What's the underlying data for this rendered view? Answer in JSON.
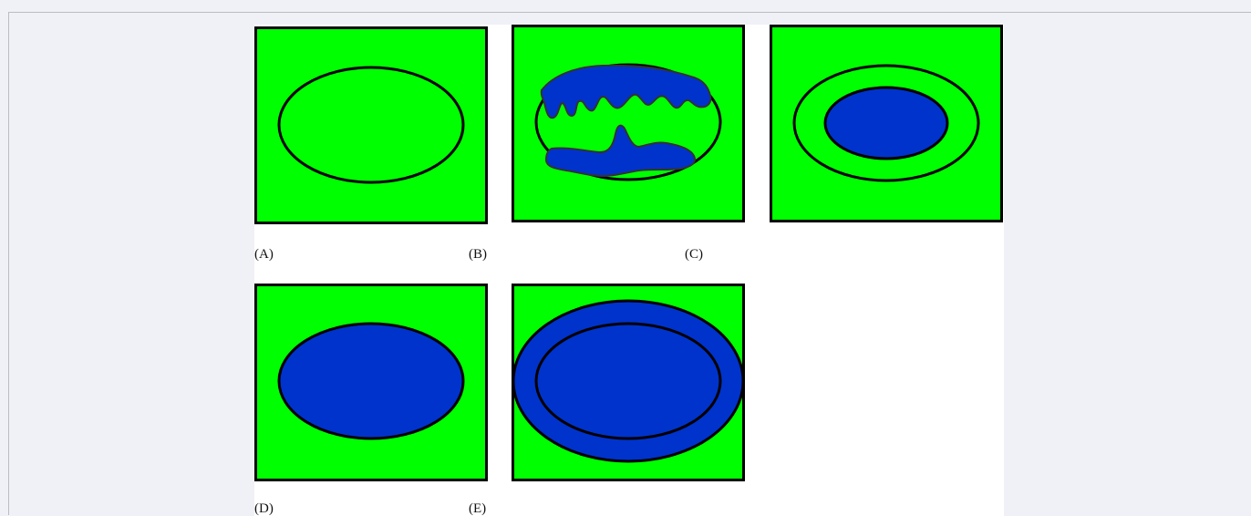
{
  "figure": {
    "panels": [
      {
        "id": "A",
        "label": "(A)",
        "description_icon": "green-square-empty-ellipse-icon"
      },
      {
        "id": "B",
        "label": "(B)",
        "description_icon": "green-square-ellipse-irregular-blue-icon"
      },
      {
        "id": "C",
        "label": "(C)",
        "description_icon": "green-square-ring-inner-blue-ellipse-icon"
      },
      {
        "id": "D",
        "label": "(D)",
        "description_icon": "green-square-filled-blue-ellipse-icon"
      },
      {
        "id": "E",
        "label": "(E)",
        "description_icon": "green-square-blue-ring-ellipse-icon"
      }
    ]
  },
  "colors": {
    "background": "#f0f1f7",
    "figure_bg": "#ffffff",
    "panel_fill": "#00ff00",
    "blue_fill": "#0033cc",
    "stroke": "#000000"
  }
}
